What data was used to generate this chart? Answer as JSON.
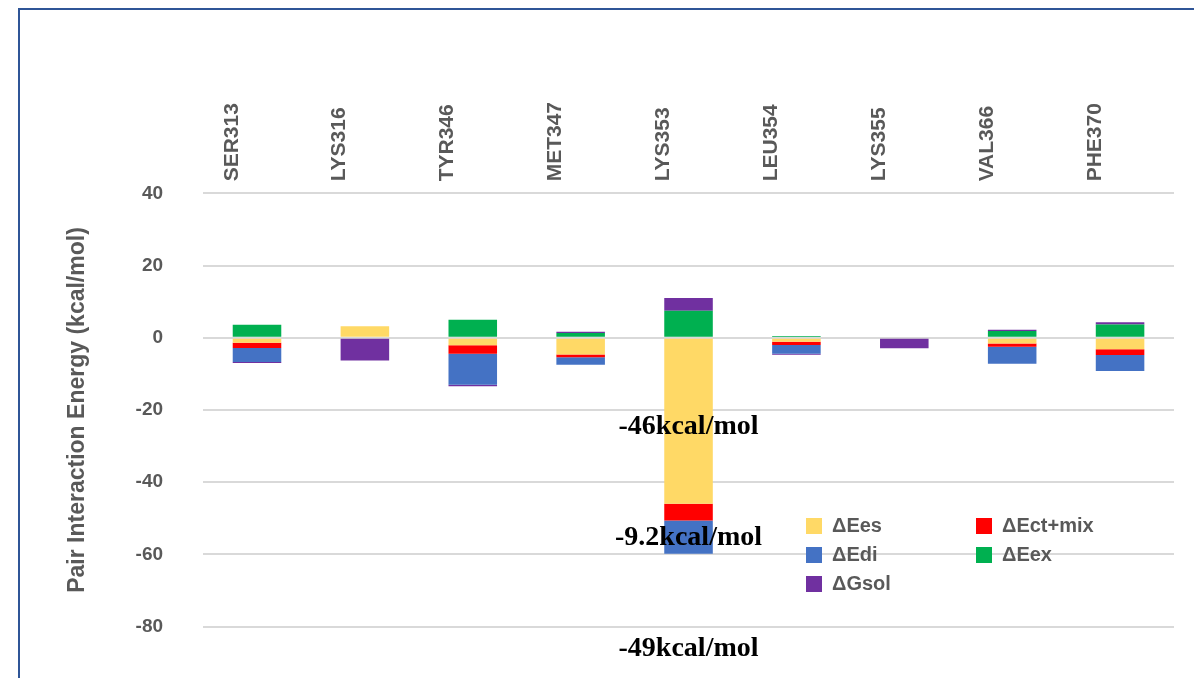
{
  "chart_data": {
    "type": "bar",
    "stacked": true,
    "ylabel": "Pair Interaction Energy (kcal/mol)",
    "categories": [
      "SER313",
      "LYS316",
      "TYR346",
      "MET347",
      "LYS353",
      "LEU354",
      "LYS355",
      "VAL366",
      "PHE370"
    ],
    "series": [
      {
        "name": "ΔEes",
        "color": "#ffd966",
        "values": [
          -1.4,
          3.2,
          -2.1,
          -4.6,
          -46,
          -1.1,
          null,
          -1.6,
          -3.2
        ]
      },
      {
        "name": "ΔEct+mix",
        "color": "#ff0000",
        "values": [
          -1.4,
          null,
          -2.3,
          -0.8,
          -4.6,
          -0.9,
          null,
          -0.9,
          -1.6
        ]
      },
      {
        "name": "ΔEdi",
        "color": "#4472c4",
        "values": [
          -3.9,
          null,
          -8.6,
          -2.1,
          -9.2,
          -2.4,
          null,
          -4.7,
          -4.4
        ]
      },
      {
        "name": "ΔEex",
        "color": "#00b050",
        "values": [
          3.6,
          null,
          5.0,
          1.3,
          7.5,
          0.5,
          null,
          1.9,
          3.7
        ]
      },
      {
        "name": "ΔGsol",
        "color": "#7030a0",
        "values": [
          -0.3,
          -6.3,
          -0.4,
          0.4,
          3.5,
          -0.3,
          -2.9,
          0.3,
          0.6
        ]
      }
    ],
    "ylim": [
      -80,
      40
    ],
    "yticks": [
      -80,
      -60,
      -40,
      -20,
      0,
      20,
      40
    ],
    "grid": "y",
    "legend": "bottom right",
    "annotations": [
      {
        "text": "-46kcal/mol",
        "x": "LYS353",
        "y": -24.6
      },
      {
        "text": "-9.2kcal/mol",
        "x": "LYS353",
        "y": -55.4
      },
      "-49kcal/mol"
    ]
  }
}
